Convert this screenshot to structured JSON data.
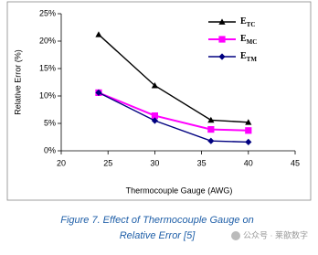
{
  "chart_data": {
    "type": "line",
    "x_label": "Thermocouple Gauge (AWG)",
    "y_label": "Relative Error (%)",
    "x": [
      24,
      30,
      36,
      40
    ],
    "series": [
      {
        "name": "ETC",
        "color": "#000000",
        "marker": "triangle",
        "values": [
          21.2,
          11.9,
          5.6,
          5.2
        ]
      },
      {
        "name": "EMC",
        "color": "#ff00ff",
        "marker": "square",
        "values": [
          10.6,
          6.4,
          3.9,
          3.7
        ]
      },
      {
        "name": "ETM",
        "color": "#000080",
        "marker": "diamond",
        "values": [
          10.6,
          5.5,
          1.8,
          1.6
        ]
      }
    ],
    "xlim": [
      20,
      45
    ],
    "xticks": [
      20,
      25,
      30,
      35,
      40,
      45
    ],
    "ylim": [
      0,
      25
    ],
    "yticks": [
      {
        "value": 0,
        "label": "0%"
      },
      {
        "value": 5,
        "label": "5%"
      },
      {
        "value": 10,
        "label": "10%"
      },
      {
        "value": 15,
        "label": "15%"
      },
      {
        "value": 20,
        "label": "20%"
      },
      {
        "value": 25,
        "label": "25%"
      }
    ],
    "legend": "upper-right"
  },
  "caption": [
    "Figure 7. Effect of Thermocouple Gauge on",
    "Relative Error [5]"
  ],
  "watermark": "公众号 · 莱歆数字"
}
